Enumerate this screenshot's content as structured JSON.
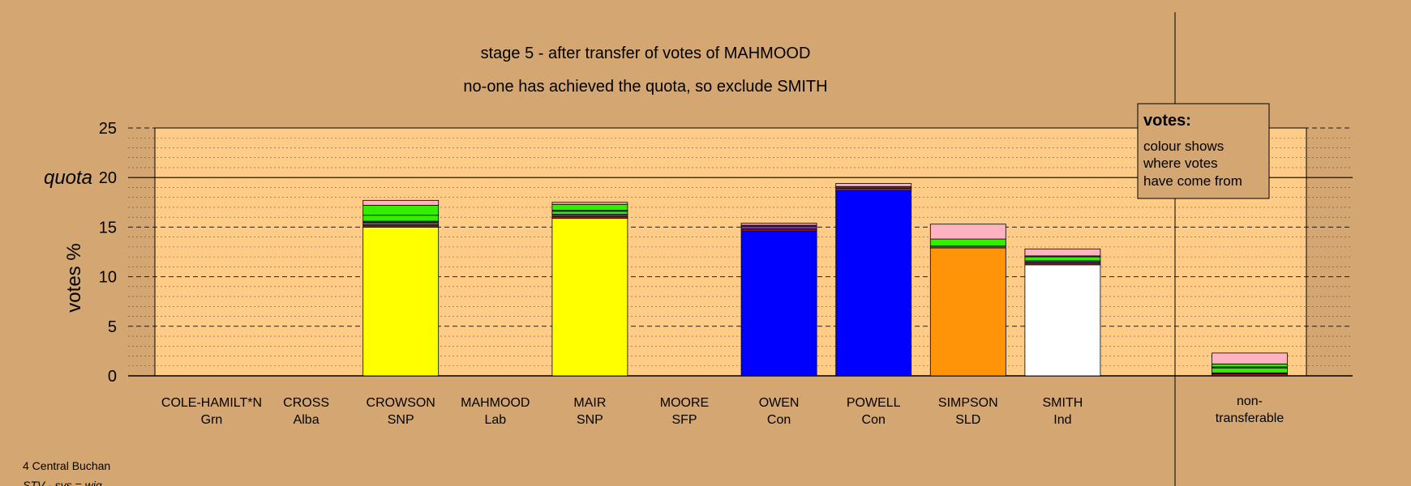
{
  "title": "stage 5 - after transfer of votes of MAHMOOD",
  "subtitle": "no-one has achieved the quota, so exclude SMITH",
  "footer": {
    "ward": "4 Central Buchan",
    "system": "STV - sys = wig"
  },
  "legend": {
    "heading": "votes:",
    "lines": [
      "colour shows",
      "where votes",
      "have come from"
    ]
  },
  "colors": {
    "background": "#d4a772",
    "plot_background": "#ffcc88",
    "Grn": "#33ee00",
    "Alba": "#555555",
    "SNP": "#ffff00",
    "Lab": "#9b1b1b",
    "SFP": "#7b2fa5",
    "Con": "#0000ff",
    "SLD": "#ff9408",
    "Ind": "#ffffff",
    "nontransferable": "#ffb2c0"
  },
  "chart_data": {
    "type": "bar",
    "stacked": true,
    "ylabel": "votes %",
    "ylim": [
      0,
      25
    ],
    "yticks": [
      0,
      5,
      10,
      15,
      20,
      25
    ],
    "quota": 20,
    "quota_label": "quota",
    "grid": true,
    "legend_position": "top-right",
    "candidates": [
      {
        "name": "COLE-HAMILT*N",
        "party": "Grn",
        "segments": []
      },
      {
        "name": "CROSS",
        "party": "Alba",
        "segments": []
      },
      {
        "name": "CROWSON",
        "party": "SNP",
        "segments": [
          {
            "from": "SNP",
            "value": 15.0
          },
          {
            "from": "Lab",
            "value": 0.2
          },
          {
            "from": "Alba",
            "value": 0.3
          },
          {
            "from": "SFP",
            "value": 0.1
          },
          {
            "from": "Grn",
            "value": 0.6
          },
          {
            "from": "Grn",
            "value": 1.0
          },
          {
            "from": "nontransferable",
            "value": 0.5
          }
        ]
      },
      {
        "name": "MAHMOOD",
        "party": "Lab",
        "segments": []
      },
      {
        "name": "MAIR",
        "party": "SNP",
        "segments": [
          {
            "from": "SNP",
            "value": 15.9
          },
          {
            "from": "Lab",
            "value": 0.2
          },
          {
            "from": "Alba",
            "value": 0.2
          },
          {
            "from": "Grn",
            "value": 0.3
          },
          {
            "from": "SFP",
            "value": 0.1
          },
          {
            "from": "Grn",
            "value": 0.6
          },
          {
            "from": "nontransferable",
            "value": 0.2
          }
        ]
      },
      {
        "name": "MOORE",
        "party": "SFP",
        "segments": []
      },
      {
        "name": "OWEN",
        "party": "Con",
        "segments": [
          {
            "from": "Con",
            "value": 14.6
          },
          {
            "from": "Lab",
            "value": 0.2
          },
          {
            "from": "SFP",
            "value": 0.3
          },
          {
            "from": "Alba",
            "value": 0.1
          },
          {
            "from": "nontransferable",
            "value": 0.2
          }
        ]
      },
      {
        "name": "POWELL",
        "party": "Con",
        "segments": [
          {
            "from": "Con",
            "value": 18.7
          },
          {
            "from": "SFP",
            "value": 0.2
          },
          {
            "from": "Lab",
            "value": 0.2
          },
          {
            "from": "nontransferable",
            "value": 0.3
          }
        ]
      },
      {
        "name": "SIMPSON",
        "party": "SLD",
        "segments": [
          {
            "from": "SLD",
            "value": 12.9
          },
          {
            "from": "Alba",
            "value": 0.2
          },
          {
            "from": "Grn",
            "value": 0.7
          },
          {
            "from": "nontransferable",
            "value": 1.5
          }
        ]
      },
      {
        "name": "SMITH",
        "party": "Ind",
        "segments": [
          {
            "from": "Ind",
            "value": 11.2
          },
          {
            "from": "Lab",
            "value": 0.2
          },
          {
            "from": "SFP",
            "value": 0.2
          },
          {
            "from": "Grn",
            "value": 0.4
          },
          {
            "from": "Alba",
            "value": 0.1
          },
          {
            "from": "nontransferable",
            "value": 0.7
          }
        ]
      }
    ],
    "nontransferable": {
      "label_lines": [
        "non-",
        "transferable"
      ],
      "segments": [
        {
          "from": "Lab",
          "value": 0.2
        },
        {
          "from": "SFP",
          "value": 0.1
        },
        {
          "from": "Grn",
          "value": 0.5
        },
        {
          "from": "Alba",
          "value": 0.1
        },
        {
          "from": "Grn",
          "value": 0.3
        },
        {
          "from": "nontransferable",
          "value": 1.1
        }
      ]
    }
  }
}
